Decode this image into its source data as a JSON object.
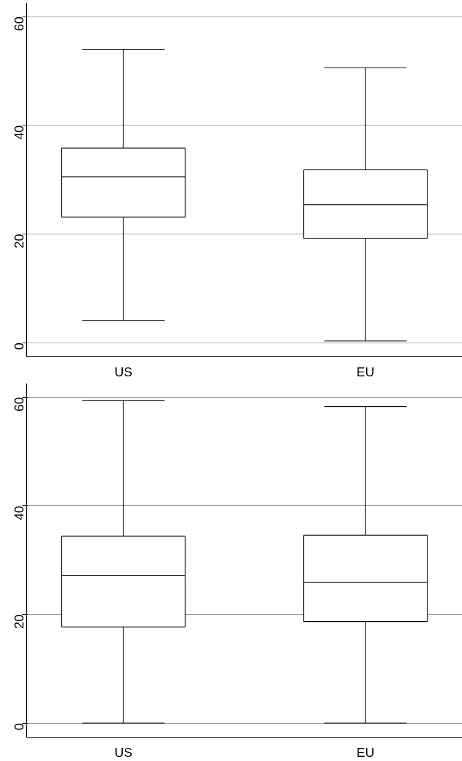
{
  "chart_data": [
    {
      "type": "box",
      "categories": [
        "US",
        "EU"
      ],
      "boxes": [
        {
          "low": 4.1,
          "q1": 23.1,
          "median": 30.5,
          "q3": 35.8,
          "high": 54.0
        },
        {
          "low": 0.3,
          "q1": 19.2,
          "median": 25.4,
          "q3": 31.8,
          "high": 50.6
        }
      ],
      "ylim": [
        -2.6,
        62.5
      ],
      "yticks": [
        0,
        20,
        40,
        60
      ],
      "grid": "y"
    },
    {
      "type": "box",
      "categories": [
        "US",
        "EU"
      ],
      "boxes": [
        {
          "low": 0,
          "q1": 17.7,
          "median": 27.2,
          "q3": 34.4,
          "high": 59.4
        },
        {
          "low": 0,
          "q1": 18.7,
          "median": 25.9,
          "q3": 34.6,
          "high": 58.3
        }
      ],
      "ylim": [
        -2.6,
        62.5
      ],
      "yticks": [
        0,
        20,
        40,
        60
      ],
      "grid": "y"
    }
  ]
}
